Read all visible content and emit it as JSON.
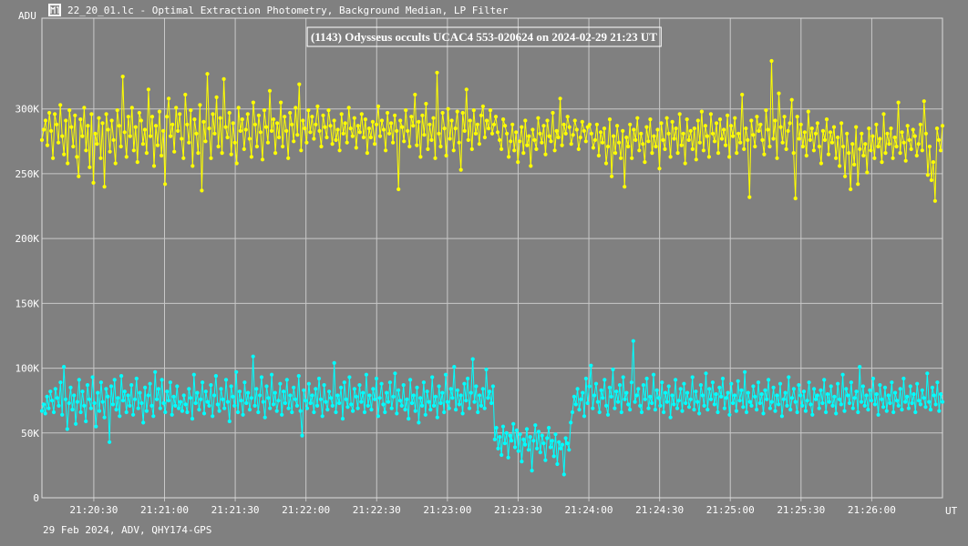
{
  "window": {
    "title": "22_20_01.lc - Optimal Extraction Photometry, Background Median, LP Filter",
    "app_icon": "lightcurve-app-icon"
  },
  "footer_text": "29 Feb 2024, ADV, QHY174-GPS",
  "colors": {
    "background": "#808080",
    "grid": "#c8c8c8",
    "target_series": "#ffff00",
    "comparison_series": "#00ffff",
    "text": "#ffffff",
    "title_box_border": "#ffffff"
  },
  "chart_data": {
    "type": "line",
    "title": "(1143) Odysseus occults UCAC4 553-020624 on 2024-02-29  21:23 UT",
    "ylabel": "ADU",
    "xlabel": "UT",
    "ylim": [
      0,
      370000
    ],
    "xlim": [
      "21:20:08",
      "21:26:30"
    ],
    "grid": true,
    "x_ticks": [
      "21:20:30",
      "21:21:00",
      "21:21:30",
      "21:22:00",
      "21:22:30",
      "21:23:00",
      "21:23:30",
      "21:24:00",
      "21:24:30",
      "21:25:00",
      "21:25:30",
      "21:26:00"
    ],
    "y_ticks": [
      {
        "value": 0,
        "label": "0"
      },
      {
        "value": 50000,
        "label": "50K"
      },
      {
        "value": 100000,
        "label": "100K"
      },
      {
        "value": 150000,
        "label": "150K"
      },
      {
        "value": 200000,
        "label": "200K"
      },
      {
        "value": 250000,
        "label": "250K"
      },
      {
        "value": 300000,
        "label": "300K"
      }
    ],
    "sampling_note_visible": false,
    "x_start": "21:20:08",
    "x_end": "21:26:30",
    "series": [
      {
        "color": "#ffff00",
        "values": [
          276000,
          284000,
          291000,
          272000,
          297000,
          283000,
          262000,
          296000,
          288000,
          274000,
          303000,
          279000,
          265000,
          291000,
          258000,
          299000,
          286000,
          271000,
          295000,
          263000,
          248000,
          292000,
          279000,
          301000,
          268000,
          287000,
          255000,
          296000,
          243000,
          281000,
          273000,
          293000,
          262000,
          289000,
          240000,
          296000,
          284000,
          267000,
          291000,
          276000,
          258000,
          299000,
          287000,
          271000,
          325000,
          282000,
          263000,
          294000,
          279000,
          301000,
          268000,
          286000,
          259000,
          297000,
          291000,
          273000,
          284000,
          266000,
          315000,
          279000,
          294000,
          256000,
          287000,
          272000,
          298000,
          264000,
          283000,
          242000,
          294000,
          308000,
          279000,
          288000,
          267000,
          301000,
          283000,
          296000,
          277000,
          262000,
          311000,
          288000,
          274000,
          299000,
          256000,
          292000,
          281000,
          266000,
          303000,
          237000,
          290000,
          275000,
          327000,
          285000,
          262000,
          296000,
          281000,
          309000,
          271000,
          293000,
          266000,
          323000,
          286000,
          278000,
          297000,
          265000,
          289000,
          274000,
          258000,
          301000,
          283000,
          292000,
          269000,
          284000,
          296000,
          277000,
          263000,
          305000,
          288000,
          271000,
          295000,
          282000,
          261000,
          299000,
          286000,
          274000,
          314000,
          283000,
          292000,
          266000,
          289000,
          278000,
          305000,
          271000,
          294000,
          283000,
          262000,
          297000,
          288000,
          275000,
          301000,
          280000,
          319000,
          268000,
          291000,
          285000,
          274000,
          299000,
          282000,
          294000,
          277000,
          288000,
          302000,
          283000,
          271000,
          295000,
          286000,
          278000,
          299000,
          287000,
          273000,
          291000,
          276000,
          284000,
          268000,
          296000,
          281000,
          289000,
          274000,
          301000,
          285000,
          279000,
          293000,
          270000,
          287000,
          282000,
          296000,
          278000,
          292000,
          266000,
          285000,
          278000,
          290000,
          273000,
          288000,
          302000,
          279000,
          291000,
          284000,
          268000,
          297000,
          281000,
          289000,
          274000,
          295000,
          283000,
          238000,
          291000,
          286000,
          275000,
          299000,
          283000,
          271000,
          294000,
          287000,
          311000,
          272000,
          290000,
          263000,
          295000,
          280000,
          304000,
          269000,
          288000,
          276000,
          293000,
          262000,
          328000,
          281000,
          271000,
          297000,
          285000,
          264000,
          300000,
          277000,
          291000,
          268000,
          285000,
          298000,
          274000,
          253000,
          297000,
          283000,
          315000,
          276000,
          291000,
          269000,
          299000,
          281000,
          288000,
          273000,
          295000,
          302000,
          278000,
          291000,
          285000,
          299000,
          281000,
          288000,
          294000,
          282000,
          276000,
          269000,
          292000,
          287000,
          281000,
          263000,
          275000,
          288000,
          268000,
          282000,
          259000,
          275000,
          286000,
          266000,
          291000,
          272000,
          279000,
          256000,
          284000,
          276000,
          269000,
          293000,
          281000,
          274000,
          287000,
          265000,
          291000,
          279000,
          275000,
          297000,
          268000,
          283000,
          278000,
          308000,
          272000,
          288000,
          281000,
          294000,
          286000,
          273000,
          280000,
          291000,
          284000,
          269000,
          278000,
          290000,
          283000,
          275000,
          286000,
          288000,
          281000,
          270000,
          276000,
          288000,
          264000,
          282000,
          274000,
          285000,
          258000,
          271000,
          292000,
          248000,
          279000,
          266000,
          287000,
          274000,
          262000,
          283000,
          240000,
          278000,
          271000,
          288000,
          262000,
          284000,
          276000,
          293000,
          268000,
          281000,
          273000,
          259000,
          286000,
          275000,
          292000,
          266000,
          279000,
          271000,
          284000,
          254000,
          289000,
          276000,
          269000,
          293000,
          281000,
          263000,
          290000,
          277000,
          285000,
          266000,
          296000,
          272000,
          281000,
          258000,
          292000,
          276000,
          283000,
          269000,
          285000,
          261000,
          291000,
          274000,
          298000,
          268000,
          287000,
          279000,
          263000,
          296000,
          281000,
          275000,
          289000,
          266000,
          292000,
          277000,
          284000,
          272000,
          295000,
          263000,
          287000,
          279000,
          293000,
          266000,
          281000,
          274000,
          311000,
          269000,
          285000,
          276000,
          232000,
          291000,
          280000,
          271000,
          294000,
          283000,
          288000,
          276000,
          265000,
          299000,
          284000,
          271000,
          337000,
          277000,
          291000,
          262000,
          312000,
          286000,
          274000,
          294000,
          269000,
          283000,
          289000,
          307000,
          266000,
          231000,
          294000,
          277000,
          288000,
          271000,
          282000,
          264000,
          298000,
          276000,
          285000,
          268000,
          281000,
          289000,
          271000,
          258000,
          283000,
          276000,
          292000,
          265000,
          282000,
          274000,
          286000,
          262000,
          278000,
          256000,
          289000,
          271000,
          248000,
          281000,
          266000,
          238000,
          273000,
          257000,
          286000,
          242000,
          269000,
          281000,
          264000,
          273000,
          251000,
          285000,
          268000,
          279000,
          262000,
          288000,
          271000,
          277000,
          259000,
          296000,
          266000,
          281000,
          273000,
          285000,
          262000,
          278000,
          271000,
          305000,
          266000,
          282000,
          274000,
          260000,
          287000,
          276000,
          269000,
          284000,
          279000,
          264000,
          273000,
          288000,
          268000,
          306000,
          281000,
          249000,
          271000,
          245000,
          259000,
          229000,
          285000,
          276000,
          268000,
          287000
        ]
      },
      {
        "color": "#00ffff",
        "values": [
          67000,
          72000,
          65000,
          78000,
          69000,
          82000,
          75000,
          66000,
          84000,
          77000,
          71000,
          89000,
          64000,
          101000,
          76000,
          53000,
          73000,
          85000,
          68000,
          79000,
          57000,
          74000,
          91000,
          66000,
          82000,
          71000,
          59000,
          87000,
          76000,
          69000,
          93000,
          73000,
          55000,
          81000,
          67000,
          89000,
          74000,
          62000,
          84000,
          78000,
          43000,
          86000,
          72000,
          91000,
          68000,
          77000,
          63000,
          94000,
          75000,
          82000,
          66000,
          79000,
          71000,
          87000,
          64000,
          76000,
          92000,
          69000,
          81000,
          73000,
          58000,
          85000,
          67000,
          79000,
          88000,
          71000,
          63000,
          97000,
          76000,
          84000,
          69000,
          91000,
          73000,
          66000,
          82000,
          75000,
          89000,
          64000,
          78000,
          71000,
          86000,
          69000,
          74000,
          67000,
          79000,
          72000,
          66000,
          84000,
          77000,
          61000,
          95000,
          73000,
          81000,
          68000,
          76000,
          89000,
          65000,
          82000,
          74000,
          71000,
          87000,
          63000,
          79000,
          94000,
          72000,
          67000,
          84000,
          76000,
          69000,
          91000,
          74000,
          59000,
          86000,
          78000,
          71000,
          97000,
          66000,
          82000,
          75000,
          64000,
          89000,
          73000,
          81000,
          68000,
          77000,
          109000,
          71000,
          84000,
          66000,
          79000,
          93000,
          74000,
          62000,
          86000,
          77000,
          69000,
          95000,
          72000,
          81000,
          67000,
          75000,
          88000,
          64000,
          82000,
          73000,
          91000,
          69000,
          79000,
          66000,
          85000,
          76000,
          71000,
          94000,
          67000,
          48000,
          83000,
          75000,
          69000,
          88000,
          73000,
          79000,
          66000,
          84000,
          71000,
          92000,
          76000,
          63000,
          87000,
          74000,
          68000,
          82000,
          77000,
          71000,
          104000,
          66000,
          79000,
          73000,
          85000,
          61000,
          89000,
          76000,
          70000,
          93000,
          72000,
          67000,
          84000,
          78000,
          69000,
          87000,
          74000,
          81000,
          66000,
          95000,
          71000,
          79000,
          68000,
          84000,
          76000,
          92000,
          63000,
          77000,
          88000,
          72000,
          66000,
          81000,
          74000,
          89000,
          69000,
          78000,
          96000,
          65000,
          83000,
          75000,
          71000,
          87000,
          68000,
          76000,
          61000,
          91000,
          73000,
          79000,
          67000,
          85000,
          58000,
          77000,
          71000,
          89000,
          64000,
          82000,
          74000,
          68000,
          93000,
          71000,
          78000,
          62000,
          86000,
          73000,
          81000,
          66000,
          95000,
          74000,
          69000,
          84000,
          77000,
          101000,
          68000,
          83000,
          72000,
          79000,
          65000,
          88000,
          75000,
          92000,
          69000,
          81000,
          107000,
          74000,
          86000,
          66000,
          79000,
          71000,
          84000,
          69000,
          99000,
          77000,
          82000,
          73000,
          86000,
          45000,
          54000,
          38000,
          47000,
          33000,
          55000,
          42000,
          50000,
          31000,
          48000,
          44000,
          57000,
          39000,
          52000,
          36000,
          49000,
          28000,
          45000,
          41000,
          53000,
          37000,
          47000,
          21000,
          44000,
          56000,
          38000,
          51000,
          35000,
          48000,
          42000,
          29000,
          46000,
          54000,
          39000,
          44000,
          32000,
          49000,
          26000,
          43000,
          38000,
          41000,
          18000,
          46000,
          42000,
          37000,
          58000,
          66000,
          78000,
          72000,
          84000,
          68000,
          76000,
          81000,
          63000,
          92000,
          73000,
          86000,
          102000,
          69000,
          79000,
          88000,
          74000,
          66000,
          83000,
          77000,
          91000,
          71000,
          64000,
          85000,
          78000,
          99000,
          69000,
          82000,
          74000,
          87000,
          66000,
          93000,
          76000,
          81000,
          72000,
          68000,
          89000,
          121000,
          74000,
          79000,
          84000,
          71000,
          66000,
          87000,
          76000,
          92000,
          69000,
          78000,
          73000,
          95000,
          68000,
          83000,
          77000,
          71000,
          89000,
          66000,
          81000,
          74000,
          86000,
          62000,
          79000,
          72000,
          91000,
          69000,
          75000,
          84000,
          67000,
          88000,
          73000,
          81000,
          70000,
          76000,
          93000,
          68000,
          82000,
          74000,
          65000,
          87000,
          79000,
          71000,
          96000,
          68000,
          84000,
          76000,
          89000,
          72000,
          80000,
          66000,
          85000,
          78000,
          92000,
          69000,
          77000,
          81000,
          64000,
          88000,
          73000,
          79000,
          67000,
          90000,
          75000,
          83000,
          70000,
          97000,
          66000,
          81000,
          74000,
          71000,
          86000,
          78000,
          68000,
          89000,
          73000,
          80000,
          65000,
          83000,
          76000,
          91000,
          69000,
          74000,
          85000,
          67000,
          79000,
          72000,
          88000,
          63000,
          76000,
          81000,
          71000,
          93000,
          68000,
          77000,
          84000,
          74000,
          66000,
          87000,
          79000,
          71000,
          82000,
          67000,
          75000,
          89000,
          72000,
          64000,
          84000,
          76000,
          79000,
          69000,
          83000,
          73000,
          91000,
          66000,
          80000,
          74000,
          86000,
          71000,
          78000,
          65000,
          88000,
          76000,
          72000,
          95000,
          67000,
          84000,
          79000,
          73000,
          89000,
          69000,
          77000,
          82000,
          66000,
          101000,
          74000,
          86000,
          71000,
          79000,
          68000,
          83000,
          75000,
          92000,
          72000,
          80000,
          64000,
          87000,
          76000,
          70000,
          85000,
          67000,
          79000,
          73000,
          89000,
          66000,
          81000,
          75000,
          71000,
          84000,
          68000,
          92000,
          74000,
          78000,
          69000,
          86000,
          73000,
          80000,
          66000,
          88000,
          75000,
          72000,
          83000,
          77000,
          70000,
          96000,
          74000,
          68000,
          85000,
          79000,
          72000,
          89000,
          67000,
          80000,
          74000
        ]
      }
    ]
  }
}
